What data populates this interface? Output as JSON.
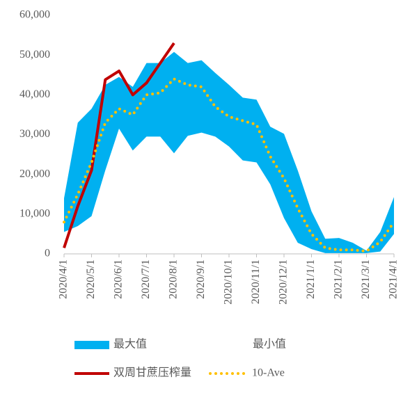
{
  "chart_data": {
    "type": "line",
    "categories": [
      "2020/4/1",
      null,
      "2020/5/1",
      null,
      "2020/6/1",
      null,
      "2020/7/1",
      null,
      "2020/8/1",
      null,
      "2020/9/1",
      null,
      "2020/10/1",
      null,
      "2020/11/1",
      null,
      "2020/12/1",
      null,
      "2021/1/1",
      null,
      "2021/2/1",
      null,
      "2021/3/1",
      null,
      "2021/4/1"
    ],
    "ylim": [
      0,
      60000
    ],
    "yticks": [
      0,
      {
        "value": 10000,
        "label": "10,000"
      },
      {
        "value": 20000,
        "label": "20,000"
      },
      {
        "value": 30000,
        "label": "30,000"
      },
      {
        "value": 40000,
        "label": "40,000"
      },
      {
        "value": 50000,
        "label": "50,000"
      },
      {
        "value": 60000,
        "label": "60,000"
      }
    ],
    "grid": false,
    "series": [
      {
        "name": "最大值",
        "type": "area",
        "color": "#00b0f0",
        "values": [
          14000,
          33000,
          36500,
          42500,
          44500,
          42000,
          48000,
          48000,
          50800,
          48000,
          48700,
          45500,
          42500,
          39300,
          38800,
          32000,
          30200,
          21000,
          10700,
          3800,
          4000,
          2800,
          800,
          5500,
          14300
        ]
      },
      {
        "name": "最小值",
        "type": "area",
        "color": "#ffffff",
        "values": [
          5500,
          7000,
          9500,
          21000,
          31500,
          26000,
          29500,
          29500,
          25300,
          29700,
          30500,
          29500,
          27000,
          23500,
          23000,
          17500,
          9000,
          2800,
          1200,
          200,
          200,
          200,
          200,
          600,
          5000
        ]
      },
      {
        "name": "双周甘蔗压榨量",
        "type": "line",
        "color": "#c00000",
        "values": [
          1500,
          12000,
          21000,
          43800,
          46000,
          40000,
          43000,
          48000,
          53000,
          null,
          null,
          null,
          null,
          null,
          null,
          null,
          null,
          null,
          null,
          null,
          null,
          null,
          null,
          null,
          null
        ]
      },
      {
        "name": "10-Ave",
        "type": "line",
        "style": "dotted",
        "color": "#ffc000",
        "values": [
          8000,
          15000,
          23000,
          33000,
          36500,
          35000,
          40000,
          40500,
          44000,
          42500,
          42000,
          37000,
          34500,
          33500,
          32500,
          24500,
          19000,
          11500,
          5000,
          1500,
          1000,
          1000,
          700,
          3000,
          8000
        ]
      }
    ]
  }
}
